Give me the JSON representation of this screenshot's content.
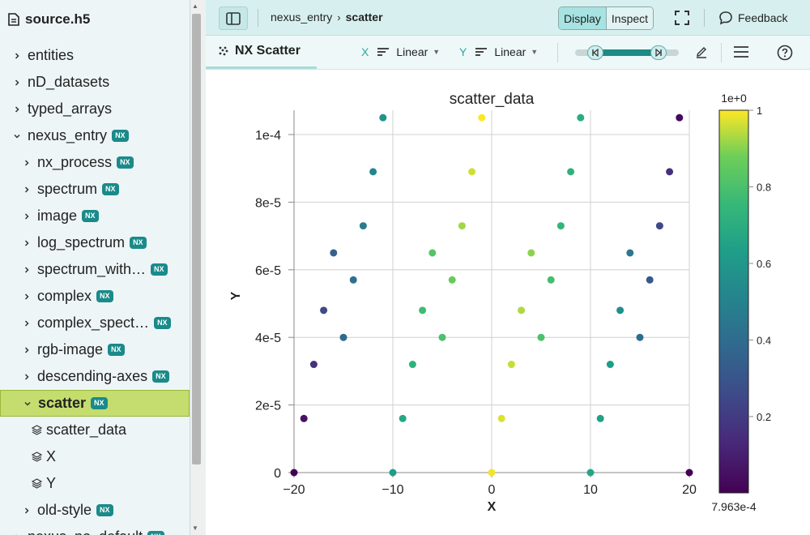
{
  "sidebar": {
    "file_name": "source.h5",
    "items": [
      {
        "label": "entities",
        "level": 0,
        "expanded": false,
        "nx": false,
        "type": "group"
      },
      {
        "label": "nD_datasets",
        "level": 0,
        "expanded": false,
        "nx": false,
        "type": "group"
      },
      {
        "label": "typed_arrays",
        "level": 0,
        "expanded": false,
        "nx": false,
        "type": "group"
      },
      {
        "label": "nexus_entry",
        "level": 0,
        "expanded": true,
        "nx": true,
        "type": "group"
      },
      {
        "label": "nx_process",
        "level": 1,
        "expanded": false,
        "nx": true,
        "type": "group"
      },
      {
        "label": "spectrum",
        "level": 1,
        "expanded": false,
        "nx": true,
        "type": "group"
      },
      {
        "label": "image",
        "level": 1,
        "expanded": false,
        "nx": true,
        "type": "group"
      },
      {
        "label": "log_spectrum",
        "level": 1,
        "expanded": false,
        "nx": true,
        "type": "group"
      },
      {
        "label": "spectrum_with…",
        "level": 1,
        "expanded": false,
        "nx": true,
        "type": "group"
      },
      {
        "label": "complex",
        "level": 1,
        "expanded": false,
        "nx": true,
        "type": "group"
      },
      {
        "label": "complex_spect…",
        "level": 1,
        "expanded": false,
        "nx": true,
        "type": "group"
      },
      {
        "label": "rgb-image",
        "level": 1,
        "expanded": false,
        "nx": true,
        "type": "group"
      },
      {
        "label": "descending-axes",
        "level": 1,
        "expanded": false,
        "nx": true,
        "type": "group"
      },
      {
        "label": "scatter",
        "level": 1,
        "expanded": true,
        "nx": true,
        "type": "group",
        "selected": true
      },
      {
        "label": "scatter_data",
        "level": 2,
        "nx": false,
        "type": "dataset"
      },
      {
        "label": "X",
        "level": 2,
        "nx": false,
        "type": "dataset"
      },
      {
        "label": "Y",
        "level": 2,
        "nx": false,
        "type": "dataset"
      },
      {
        "label": "old-style",
        "level": 1,
        "expanded": false,
        "nx": true,
        "type": "group"
      },
      {
        "label": "nexus_no_default",
        "level": 0,
        "expanded": false,
        "nx": true,
        "type": "group"
      }
    ],
    "nx_badge": "NX"
  },
  "topbar": {
    "breadcrumb": [
      "nexus_entry",
      "scatter"
    ],
    "mode_display": "Display",
    "mode_inspect": "Inspect",
    "feedback_label": "Feedback"
  },
  "toolbar": {
    "vis_tab_label": "NX Scatter",
    "x_axis_letter": "X",
    "x_scale": "Linear",
    "y_axis_letter": "Y",
    "y_scale": "Linear"
  },
  "colors": {
    "accent": "#1d8a85",
    "selected_item": "#c4dd6e",
    "topbar": "#d7f0ef"
  },
  "chart_data": {
    "type": "scatter",
    "title": "scatter_data",
    "xlabel": "X",
    "ylabel": "Y",
    "xlim": [
      -20,
      20
    ],
    "ylim": [
      0,
      0.0001
    ],
    "x_ticks": [
      -20,
      -10,
      0,
      10,
      20
    ],
    "x_tick_labels": [
      "−20",
      "−10",
      "0",
      "10",
      "20"
    ],
    "y_ticks": [
      0,
      2e-05,
      4e-05,
      6e-05,
      8e-05,
      0.0001
    ],
    "y_tick_labels": [
      "0",
      "2e-5",
      "4e-5",
      "6e-5",
      "8e-5",
      "1e-4"
    ],
    "grid": true,
    "colormap": "viridis",
    "colorbar": {
      "min_label": "7.963e-4",
      "max_label": "1",
      "exponent_label": "1e+0",
      "tick_values": [
        0.2,
        0.4,
        0.6,
        0.8,
        1
      ],
      "tick_labels": [
        "0.2",
        "0.4",
        "0.6",
        "0.8",
        "1"
      ],
      "min": 0.0007963,
      "max": 1
    },
    "points": [
      {
        "x": -20,
        "y": 0,
        "v": 0.0008
      },
      {
        "x": -19,
        "y": 1.6e-05,
        "v": 0.05
      },
      {
        "x": -18,
        "y": 3.2e-05,
        "v": 0.15
      },
      {
        "x": -17,
        "y": 4.8e-05,
        "v": 0.25
      },
      {
        "x": -16,
        "y": 6.5e-05,
        "v": 0.35
      },
      {
        "x": -15,
        "y": 4e-05,
        "v": 0.38
      },
      {
        "x": -14,
        "y": 5.7e-05,
        "v": 0.42
      },
      {
        "x": -13,
        "y": 7.3e-05,
        "v": 0.47
      },
      {
        "x": -12,
        "y": 8.9e-05,
        "v": 0.52
      },
      {
        "x": -11,
        "y": 0.000105,
        "v": 0.57
      },
      {
        "x": -10,
        "y": 0,
        "v": 0.62
      },
      {
        "x": -9,
        "y": 1.6e-05,
        "v": 0.67
      },
      {
        "x": -8,
        "y": 3.2e-05,
        "v": 0.72
      },
      {
        "x": -7,
        "y": 4.8e-05,
        "v": 0.77
      },
      {
        "x": -6,
        "y": 6.5e-05,
        "v": 0.82
      },
      {
        "x": -5,
        "y": 4e-05,
        "v": 0.8
      },
      {
        "x": -4,
        "y": 5.7e-05,
        "v": 0.86
      },
      {
        "x": -3,
        "y": 7.3e-05,
        "v": 0.92
      },
      {
        "x": -2,
        "y": 8.9e-05,
        "v": 0.96
      },
      {
        "x": -1,
        "y": 0.000105,
        "v": 1.0
      },
      {
        "x": 0,
        "y": 0,
        "v": 0.99
      },
      {
        "x": 1,
        "y": 1.6e-05,
        "v": 0.97
      },
      {
        "x": 2,
        "y": 3.2e-05,
        "v": 0.95
      },
      {
        "x": 3,
        "y": 4.8e-05,
        "v": 0.93
      },
      {
        "x": 4,
        "y": 6.5e-05,
        "v": 0.9
      },
      {
        "x": 5,
        "y": 4e-05,
        "v": 0.8
      },
      {
        "x": 6,
        "y": 5.7e-05,
        "v": 0.78
      },
      {
        "x": 7,
        "y": 7.3e-05,
        "v": 0.74
      },
      {
        "x": 8,
        "y": 8.9e-05,
        "v": 0.72
      },
      {
        "x": 9,
        "y": 0.000105,
        "v": 0.7
      },
      {
        "x": 10,
        "y": 0,
        "v": 0.66
      },
      {
        "x": 11,
        "y": 1.6e-05,
        "v": 0.64
      },
      {
        "x": 12,
        "y": 3.2e-05,
        "v": 0.62
      },
      {
        "x": 13,
        "y": 4.8e-05,
        "v": 0.56
      },
      {
        "x": 14,
        "y": 6.5e-05,
        "v": 0.45
      },
      {
        "x": 15,
        "y": 4e-05,
        "v": 0.4
      },
      {
        "x": 16,
        "y": 5.7e-05,
        "v": 0.32
      },
      {
        "x": 17,
        "y": 7.3e-05,
        "v": 0.25
      },
      {
        "x": 18,
        "y": 8.9e-05,
        "v": 0.15
      },
      {
        "x": 19,
        "y": 0.000105,
        "v": 0.03
      },
      {
        "x": 20,
        "y": 0,
        "v": 0.0008
      }
    ]
  }
}
